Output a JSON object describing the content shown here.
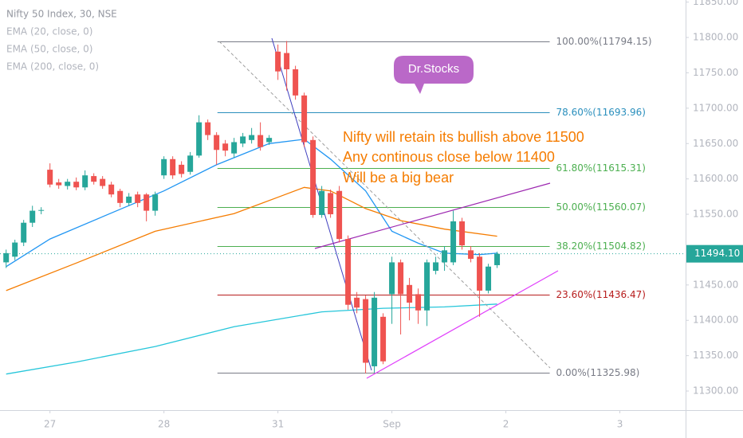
{
  "chart_data": {
    "type": "candlestick",
    "title": "Nifty 50 Index, 30, NSE",
    "x": [
      -5,
      -4,
      -3,
      -2,
      -1,
      0,
      1,
      2,
      3,
      4,
      5,
      6,
      7,
      8,
      9,
      10,
      11,
      12,
      13,
      14,
      15,
      16,
      17,
      18,
      19,
      20,
      21,
      22,
      23,
      24,
      25,
      26,
      27,
      28,
      29,
      30,
      31,
      32,
      33,
      34,
      35,
      36,
      37,
      38,
      39,
      40,
      41,
      42,
      43,
      44,
      45,
      46,
      47,
      48,
      49,
      50,
      51
    ],
    "open": [
      11482,
      11490,
      11510,
      11538,
      11555,
      11613,
      11595,
      11590,
      11596,
      11588,
      11604,
      11600,
      11592,
      11583,
      11566,
      11578,
      11578,
      11555,
      11605,
      11628,
      11620,
      11610,
      11633,
      11680,
      11662,
      11650,
      11636,
      11650,
      11655,
      11662,
      11652,
      11780,
      11778,
      11755,
      11718,
      11655,
      11549,
      11580,
      11583,
      11515,
      11432,
      11430,
      11335,
      11405,
      11437,
      11482,
      11450,
      11437,
      11414,
      11470,
      11482,
      11482,
      11540,
      11499,
      11490,
      11442,
      11478
    ],
    "high": [
      11500,
      11514,
      11542,
      11562,
      11560,
      11622,
      11600,
      11600,
      11602,
      11612,
      11608,
      11604,
      11596,
      11586,
      11580,
      11582,
      11580,
      11582,
      11632,
      11632,
      11625,
      11638,
      11690,
      11684,
      11666,
      11655,
      11658,
      11665,
      11672,
      11680,
      11662,
      11790,
      11795,
      11760,
      11722,
      11660,
      11590,
      11585,
      11590,
      11520,
      11440,
      11435,
      11440,
      11410,
      11490,
      11486,
      11460,
      11445,
      11486,
      11490,
      11505,
      11555,
      11545,
      11505,
      11495,
      11480,
      11497
    ],
    "low": [
      11474,
      11485,
      11505,
      11532,
      11550,
      11588,
      11586,
      11585,
      11584,
      11584,
      11592,
      11586,
      11574,
      11560,
      11562,
      11560,
      11540,
      11548,
      11600,
      11600,
      11602,
      11606,
      11630,
      11655,
      11620,
      11632,
      11630,
      11645,
      11650,
      11640,
      11648,
      11740,
      11725,
      11712,
      11645,
      11545,
      11545,
      11545,
      11510,
      11415,
      11410,
      11325,
      11326,
      11338,
      11395,
      11380,
      11400,
      11395,
      11392,
      11465,
      11470,
      11478,
      11500,
      11482,
      11405,
      11438,
      11474
    ],
    "close": [
      11495,
      11510,
      11538,
      11555,
      11556,
      11592,
      11591,
      11596,
      11588,
      11605,
      11596,
      11590,
      11578,
      11566,
      11575,
      11566,
      11555,
      11578,
      11628,
      11605,
      11607,
      11633,
      11680,
      11662,
      11641,
      11640,
      11652,
      11660,
      11662,
      11645,
      11658,
      11752,
      11755,
      11718,
      11652,
      11549,
      11583,
      11550,
      11515,
      11422,
      11418,
      11340,
      11432,
      11342,
      11482,
      11437,
      11425,
      11414,
      11482,
      11482,
      11499,
      11540,
      11506,
      11487,
      11442,
      11476,
      11494.1
    ],
    "up_color": "#26a69a",
    "down_color": "#ef5350",
    "series": [
      {
        "name": "EMA (20, close, 0)",
        "color": "#2196f3",
        "x": [
          -5,
          0,
          8,
          13,
          19,
          25,
          29,
          32,
          36,
          39,
          42,
          45,
          49,
          51
        ],
        "values": [
          11476,
          11515,
          11557,
          11583,
          11620,
          11650,
          11656,
          11628,
          11583,
          11526,
          11509,
          11495,
          11493,
          11495
        ]
      },
      {
        "name": "EMA (50, close, 0)",
        "color": "#f57c00",
        "x": [
          -5,
          3,
          12,
          21,
          26,
          29,
          32,
          36,
          40,
          45,
          51
        ],
        "values": [
          11442,
          11481,
          11526,
          11551,
          11574,
          11588,
          11583,
          11558,
          11541,
          11529,
          11519
        ]
      },
      {
        "name": "EMA (200, close, 0)",
        "color": "#26c6da",
        "x": [
          -5,
          3,
          12,
          21,
          31,
          38,
          45,
          51
        ],
        "values": [
          11324,
          11341,
          11363,
          11391,
          11412,
          11417,
          11419,
          11423
        ]
      }
    ],
    "fib_levels": [
      {
        "label": "100.00%(11794.15)",
        "value": 11794.15,
        "color": "#787b86"
      },
      {
        "label": "78.60%(11693.96)",
        "value": 11693.96,
        "color": "#2a8fbd"
      },
      {
        "label": "61.80%(11615.31)",
        "value": 11615.31,
        "color": "#4caf50"
      },
      {
        "label": "50.00%(11560.07)",
        "value": 11560.07,
        "color": "#4caf50"
      },
      {
        "label": "38.20%(11504.82)",
        "value": 11504.82,
        "color": "#4caf50"
      },
      {
        "label": "23.60%(11436.47)",
        "value": 11436.47,
        "color": "#b71c1c"
      },
      {
        "label": "0.00%(11325.98)",
        "value": 11325.98,
        "color": "#787b86"
      }
    ],
    "last_price": {
      "value": 11494.1,
      "label": "11494.10"
    },
    "annotations": [
      "Nifty will retain its bullish above 11500",
      "Any continous close below 11400",
      "Will be a big bear"
    ],
    "callout": "Dr.Stocks",
    "xlim": [
      -5.7,
      72.5
    ],
    "ylim": [
      11273,
      11853
    ],
    "xticks": [
      {
        "value": 0,
        "label": "27"
      },
      {
        "value": 13,
        "label": "28"
      },
      {
        "value": 26,
        "label": "31"
      },
      {
        "value": 39,
        "label": "Sep"
      },
      {
        "value": 52,
        "label": "2"
      },
      {
        "value": 65,
        "label": "3"
      }
    ],
    "yticks": [
      {
        "value": 11300,
        "label": "11300.00"
      },
      {
        "value": 11350,
        "label": "11350.00"
      },
      {
        "value": 11400,
        "label": "11400.00"
      },
      {
        "value": 11450,
        "label": "11450.00"
      },
      {
        "value": 11500,
        "label": "11500.00"
      },
      {
        "value": 11550,
        "label": "11550.00"
      },
      {
        "value": 11600,
        "label": "11600.00"
      },
      {
        "value": 11650,
        "label": "11650.00"
      },
      {
        "value": 11700,
        "label": "11700.00"
      },
      {
        "value": 11750,
        "label": "11750.00"
      },
      {
        "value": 11800,
        "label": "11800.00"
      },
      {
        "value": 11850,
        "label": "11850.00"
      }
    ],
    "grid": false
  }
}
